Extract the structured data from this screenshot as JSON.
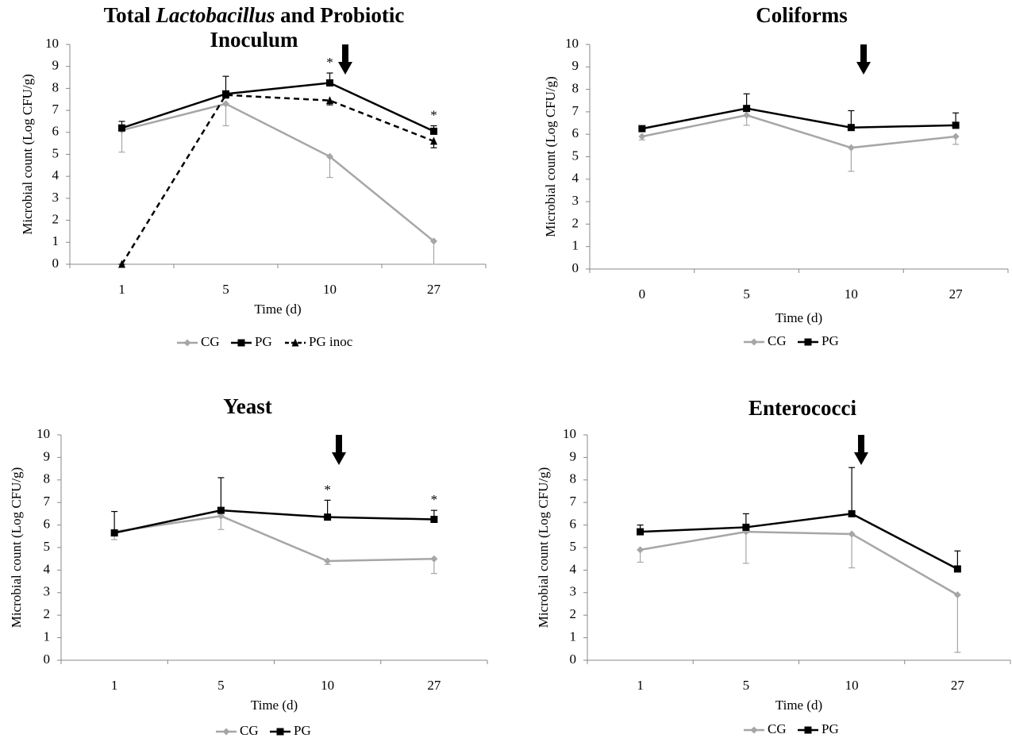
{
  "chart_data": [
    {
      "type": "line",
      "title": [
        "Total ",
        "Lactobacillus",
        " and Probiotic Inoculum"
      ],
      "title_italic": [
        false,
        true,
        false
      ],
      "x_label": "Time (d)",
      "y_label": "Microbial count (Log CFU/g)",
      "categories": [
        "1",
        "5",
        "10",
        "27"
      ],
      "ylim": [
        0,
        10
      ],
      "yticks": [
        0,
        1,
        2,
        3,
        4,
        5,
        6,
        7,
        8,
        9,
        10
      ],
      "series": [
        {
          "name": "CG",
          "color": "#a6a6a6",
          "marker": "diamond",
          "dash": false,
          "values": [
            6.1,
            7.3,
            4.9,
            1.05
          ],
          "errors": [
            1.0,
            1.0,
            0.95,
            1.05
          ],
          "error_dir": "down"
        },
        {
          "name": "PG",
          "color": "#000000",
          "marker": "square",
          "dash": false,
          "values": [
            6.2,
            7.75,
            8.25,
            6.05
          ],
          "errors": [
            0.3,
            0.8,
            0.45,
            0.25
          ],
          "error_dir": "up"
        },
        {
          "name": "PG inoc",
          "color": "#000000",
          "marker": "triangle",
          "dash": true,
          "values": [
            0,
            7.7,
            7.45,
            5.6
          ],
          "errors": [
            0,
            0,
            0.2,
            0.3
          ],
          "error_dir": "down"
        }
      ],
      "annotations": [
        {
          "text": "*",
          "at": "10"
        },
        {
          "text": "*",
          "at": "27"
        }
      ]
    },
    {
      "type": "line",
      "title": "Coliforms",
      "x_label": "Time (d)",
      "y_label": "Microbial count (Log CFU/g)",
      "categories": [
        "0",
        "5",
        "10",
        "27"
      ],
      "ylim": [
        0,
        10
      ],
      "yticks": [
        0,
        1,
        2,
        3,
        4,
        5,
        6,
        7,
        8,
        9,
        10
      ],
      "series": [
        {
          "name": "CG",
          "color": "#a6a6a6",
          "marker": "diamond",
          "dash": false,
          "values": [
            5.9,
            6.85,
            5.4,
            5.9
          ],
          "errors": [
            0.15,
            0.45,
            1.05,
            0.35
          ],
          "error_dir": "down"
        },
        {
          "name": "PG",
          "color": "#000000",
          "marker": "square",
          "dash": false,
          "values": [
            6.25,
            7.15,
            6.3,
            6.4
          ],
          "errors": [
            0.1,
            0.65,
            0.75,
            0.55
          ],
          "error_dir": "up"
        }
      ]
    },
    {
      "type": "line",
      "title": "Yeast",
      "x_label": "Time (d)",
      "y_label": "Microbial count (Log CFU/g)",
      "categories": [
        "1",
        "5",
        "10",
        "27"
      ],
      "ylim": [
        0,
        10
      ],
      "yticks": [
        0,
        1,
        2,
        3,
        4,
        5,
        6,
        7,
        8,
        9,
        10
      ],
      "series": [
        {
          "name": "CG",
          "color": "#a6a6a6",
          "marker": "diamond",
          "dash": false,
          "values": [
            5.7,
            6.4,
            4.4,
            4.5
          ],
          "errors": [
            0.35,
            0.6,
            0.15,
            0.65
          ],
          "error_dir": "down"
        },
        {
          "name": "PG",
          "color": "#000000",
          "marker": "square",
          "dash": false,
          "values": [
            5.65,
            6.65,
            6.35,
            6.25
          ],
          "errors": [
            0.95,
            1.45,
            0.75,
            0.4
          ],
          "error_dir": "up"
        }
      ],
      "annotations": [
        {
          "text": "*",
          "at": "10"
        },
        {
          "text": "*",
          "at": "27"
        }
      ]
    },
    {
      "type": "line",
      "title": "Enterococci",
      "x_label": "Time (d)",
      "y_label": "Microbial count (Log CFU/g)",
      "categories": [
        "1",
        "5",
        "10",
        "27"
      ],
      "ylim": [
        0,
        10
      ],
      "yticks": [
        0,
        1,
        2,
        3,
        4,
        5,
        6,
        7,
        8,
        9,
        10
      ],
      "series": [
        {
          "name": "CG",
          "color": "#a6a6a6",
          "marker": "diamond",
          "dash": false,
          "values": [
            4.9,
            5.7,
            5.6,
            2.9
          ],
          "errors": [
            0.55,
            1.4,
            1.5,
            2.55
          ],
          "error_dir": "down"
        },
        {
          "name": "PG",
          "color": "#000000",
          "marker": "square",
          "dash": false,
          "values": [
            5.7,
            5.9,
            6.5,
            4.05
          ],
          "errors": [
            0.3,
            0.6,
            2.05,
            0.8
          ],
          "error_dir": "up"
        }
      ]
    }
  ]
}
